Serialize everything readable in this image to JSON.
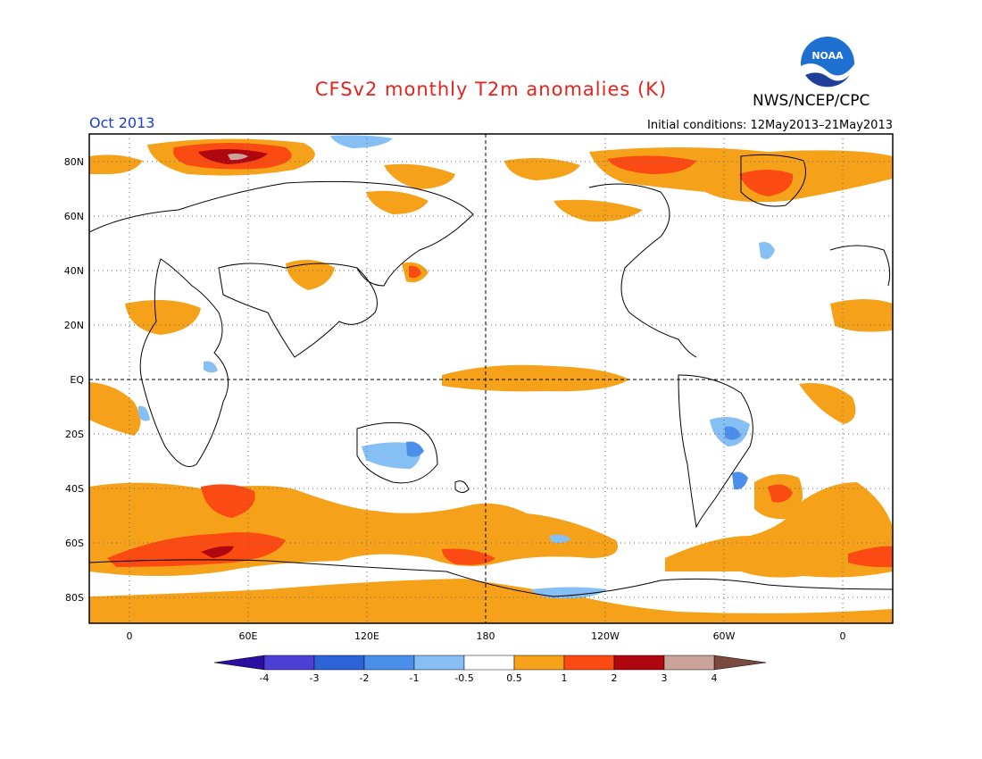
{
  "title": "CFSv2 monthly T2m anomalies (K)",
  "agency": "NWS/NCEP/CPC",
  "valid_month": "Oct 2013",
  "initial_conditions": "Initial conditions: 12May2013–21May2013",
  "logo_text": "NOAA",
  "lat_labels": [
    "80N",
    "60N",
    "40N",
    "20N",
    "EQ",
    "20S",
    "40S",
    "60S",
    "80S"
  ],
  "lon_labels": [
    "0",
    "60E",
    "120E",
    "180",
    "120W",
    "60W",
    "0"
  ],
  "colorbar": {
    "labels": [
      "-4",
      "-3",
      "-2",
      "-1",
      "-0.5",
      "0.5",
      "1",
      "2",
      "3",
      "4"
    ],
    "colors": [
      "#2a0fa0",
      "#4b3fd6",
      "#2c64d8",
      "#4a90ea",
      "#86bff3",
      "#ffffff",
      "#f6a11a",
      "#fb4a12",
      "#b0060f",
      "#caa498"
    ]
  },
  "colors": {
    "warm1": "#f6a11a",
    "warm2": "#fb4a12",
    "warm3": "#b0060f",
    "warm4": "#caa498",
    "cool1": "#86bff3",
    "cool2": "#4a90ea",
    "cool3": "#2c64d8"
  }
}
